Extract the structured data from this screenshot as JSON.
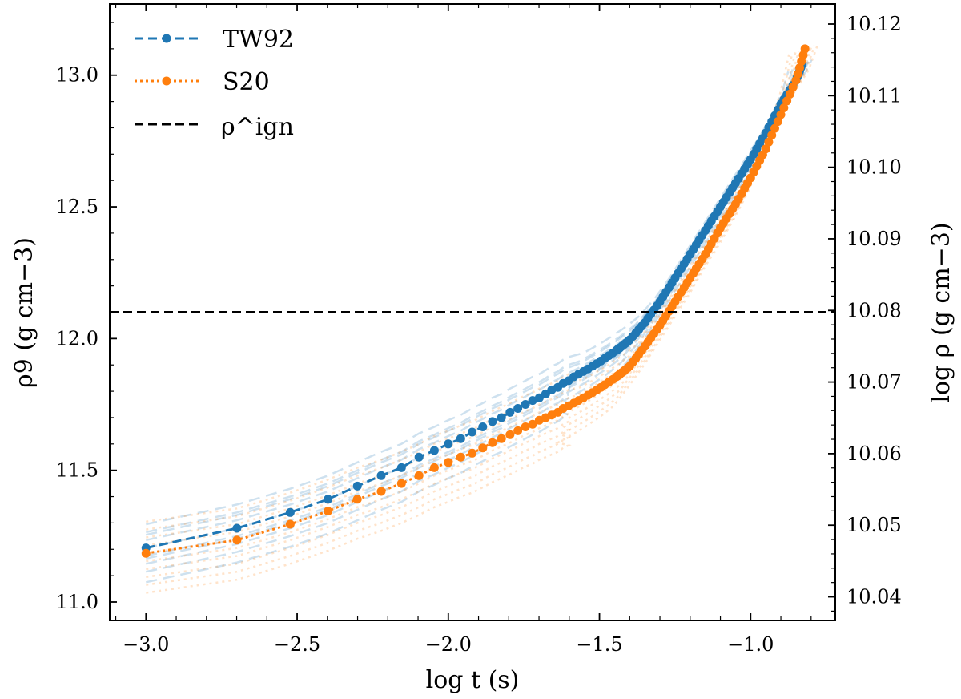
{
  "chart_data": {
    "type": "line",
    "xlabel": "log t (s)",
    "ylabel_left": "ρ9 (g cm−3)",
    "ylabel_right": "log ρ (g cm−3)",
    "xlim": [
      -3.12,
      -0.72
    ],
    "ylim": [
      10.93,
      13.27
    ],
    "ylim_right_log": [
      10.0367,
      10.1228
    ],
    "x_ticks": [
      -3.0,
      -2.5,
      -2.0,
      -1.5,
      -1.0
    ],
    "x_tick_labels": [
      "−3.0",
      "−2.5",
      "−2.0",
      "−1.5",
      "−1.0"
    ],
    "y_ticks_left": [
      11.0,
      11.5,
      12.0,
      12.5,
      13.0
    ],
    "y_tick_labels_left": [
      "11.0",
      "11.5",
      "12.0",
      "12.5",
      "13.0"
    ],
    "y_ticks_right": [
      10.04,
      10.05,
      10.06,
      10.07,
      10.08,
      10.09,
      10.1,
      10.11,
      10.12
    ],
    "y_tick_labels_right": [
      "10.04",
      "10.05",
      "10.06",
      "10.07",
      "10.08",
      "10.09",
      "10.10",
      "10.11",
      "10.12"
    ],
    "ignition_density": 12.1,
    "legend": [
      {
        "label": "TW92",
        "color": "#1f77b4",
        "style": "dashed-marker"
      },
      {
        "label": "S20",
        "color": "#ff7f0e",
        "style": "dotted-marker"
      },
      {
        "label": "ρ^ign",
        "color": "#000000",
        "style": "dashed"
      }
    ],
    "legend_position": "top-left",
    "series": [
      {
        "name": "TW92",
        "color": "#1f77b4",
        "points": [
          [
            -3.0,
            11.205
          ],
          [
            -2.699,
            11.28
          ],
          [
            -2.523,
            11.34
          ],
          [
            -2.398,
            11.39
          ],
          [
            -2.301,
            11.44
          ],
          [
            -2.222,
            11.48
          ],
          [
            -2.155,
            11.51
          ],
          [
            -2.097,
            11.55
          ],
          [
            -2.046,
            11.575
          ],
          [
            -2.0,
            11.6
          ],
          [
            -1.959,
            11.62
          ],
          [
            -1.921,
            11.645
          ],
          [
            -1.886,
            11.665
          ],
          [
            -1.854,
            11.685
          ],
          [
            -1.824,
            11.7
          ],
          [
            -1.796,
            11.72
          ],
          [
            -1.77,
            11.735
          ],
          [
            -1.745,
            11.75
          ],
          [
            -1.721,
            11.765
          ],
          [
            -1.699,
            11.775
          ],
          [
            -1.678,
            11.79
          ],
          [
            -1.658,
            11.805
          ],
          [
            -1.638,
            11.815
          ],
          [
            -1.62,
            11.83
          ],
          [
            -1.602,
            11.84
          ],
          [
            -1.585,
            11.855
          ],
          [
            -1.569,
            11.865
          ],
          [
            -1.553,
            11.875
          ],
          [
            -1.538,
            11.885
          ],
          [
            -1.523,
            11.895
          ],
          [
            -1.509,
            11.905
          ],
          [
            -1.495,
            11.915
          ],
          [
            -1.482,
            11.925
          ],
          [
            -1.469,
            11.935
          ],
          [
            -1.456,
            11.945
          ],
          [
            -1.444,
            11.955
          ],
          [
            -1.432,
            11.965
          ],
          [
            -1.4,
            11.995
          ],
          [
            -1.35,
            12.06
          ],
          [
            -1.3,
            12.14
          ],
          [
            -1.25,
            12.23
          ],
          [
            -1.2,
            12.32
          ],
          [
            -1.15,
            12.41
          ],
          [
            -1.1,
            12.5
          ],
          [
            -1.05,
            12.59
          ],
          [
            -1.0,
            12.68
          ],
          [
            -0.95,
            12.78
          ],
          [
            -0.9,
            12.89
          ],
          [
            -0.85,
            12.98
          ],
          [
            -0.83,
            13.04
          ]
        ]
      },
      {
        "name": "S20",
        "color": "#ff7f0e",
        "points": [
          [
            -3.0,
            11.185
          ],
          [
            -2.699,
            11.235
          ],
          [
            -2.523,
            11.295
          ],
          [
            -2.398,
            11.345
          ],
          [
            -2.301,
            11.39
          ],
          [
            -2.222,
            11.42
          ],
          [
            -2.155,
            11.45
          ],
          [
            -2.097,
            11.48
          ],
          [
            -2.046,
            11.51
          ],
          [
            -2.0,
            11.53
          ],
          [
            -1.959,
            11.55
          ],
          [
            -1.921,
            11.565
          ],
          [
            -1.886,
            11.585
          ],
          [
            -1.854,
            11.605
          ],
          [
            -1.824,
            11.62
          ],
          [
            -1.796,
            11.635
          ],
          [
            -1.77,
            11.65
          ],
          [
            -1.745,
            11.665
          ],
          [
            -1.721,
            11.675
          ],
          [
            -1.699,
            11.69
          ],
          [
            -1.678,
            11.7
          ],
          [
            -1.658,
            11.71
          ],
          [
            -1.638,
            11.72
          ],
          [
            -1.62,
            11.735
          ],
          [
            -1.602,
            11.745
          ],
          [
            -1.585,
            11.755
          ],
          [
            -1.569,
            11.765
          ],
          [
            -1.553,
            11.775
          ],
          [
            -1.538,
            11.785
          ],
          [
            -1.523,
            11.795
          ],
          [
            -1.509,
            11.805
          ],
          [
            -1.495,
            11.815
          ],
          [
            -1.482,
            11.825
          ],
          [
            -1.469,
            11.835
          ],
          [
            -1.456,
            11.845
          ],
          [
            -1.444,
            11.855
          ],
          [
            -1.432,
            11.865
          ],
          [
            -1.4,
            11.895
          ],
          [
            -1.35,
            11.97
          ],
          [
            -1.3,
            12.05
          ],
          [
            -1.25,
            12.14
          ],
          [
            -1.2,
            12.23
          ],
          [
            -1.15,
            12.32
          ],
          [
            -1.1,
            12.42
          ],
          [
            -1.05,
            12.51
          ],
          [
            -1.0,
            12.61
          ],
          [
            -0.95,
            12.72
          ],
          [
            -0.9,
            12.85
          ],
          [
            -0.85,
            12.98
          ],
          [
            -0.82,
            13.1
          ]
        ]
      }
    ],
    "bundle_offsets": {
      "TW92": [
        0.0,
        0.03,
        0.06,
        -0.03,
        -0.06,
        -0.09,
        0.09,
        -0.13,
        0.05,
        -0.04
      ],
      "S20": [
        0.0,
        0.03,
        0.06,
        0.12,
        -0.03,
        -0.06,
        -0.09,
        -0.12,
        -0.15,
        0.09
      ]
    }
  }
}
